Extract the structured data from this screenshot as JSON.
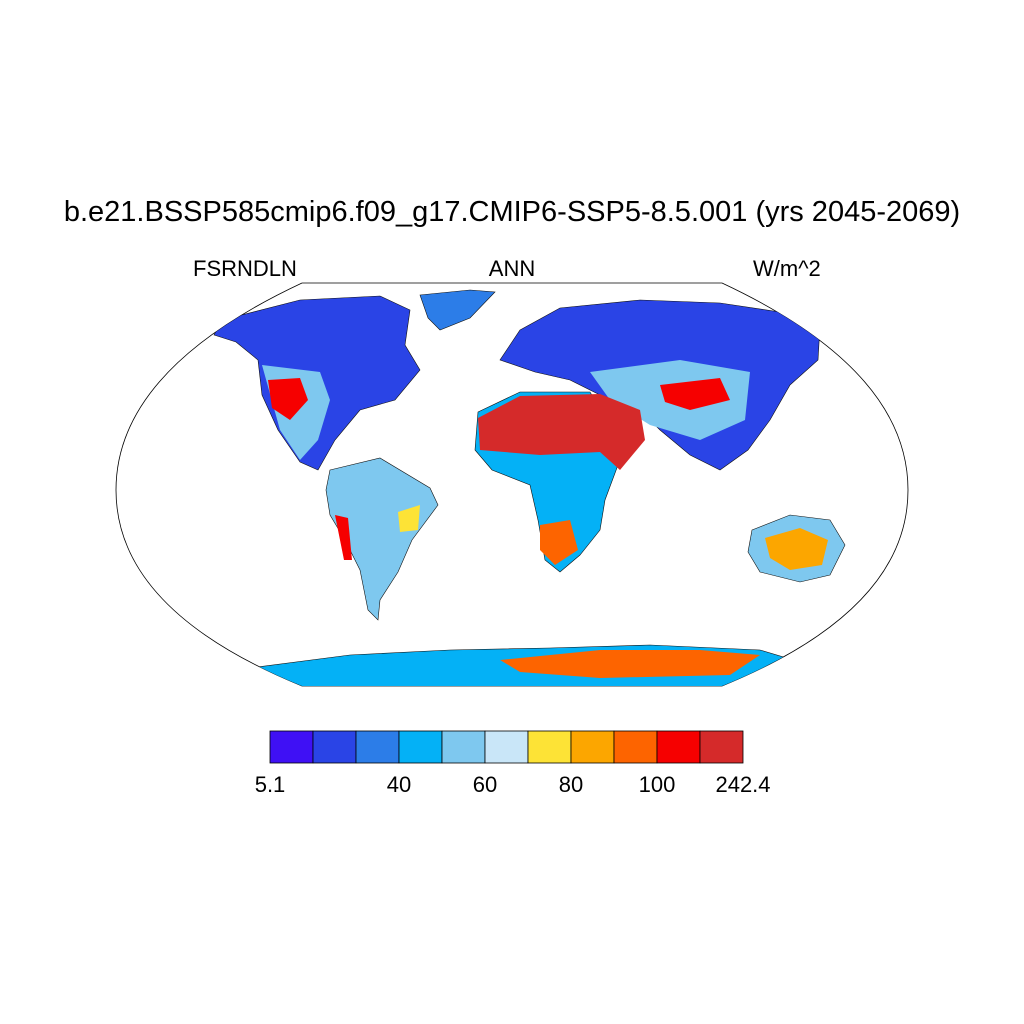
{
  "title": "b.e21.BSSP585cmip6.f09_g17.CMIP6-SSP5-8.5.001 (yrs 2045-2069)",
  "subtitle": {
    "left": "FSRNDLN",
    "center": "ANN",
    "right": "W/m^2"
  },
  "colorbar": {
    "colors": [
      "#3f10f5",
      "#2a44e6",
      "#2c7de8",
      "#04b1f6",
      "#7ec8ef",
      "#c9e6f8",
      "#fde336",
      "#fca600",
      "#fd6400",
      "#f60000",
      "#d52a2a"
    ],
    "labels": [
      "5.1",
      "40",
      "60",
      "80",
      "100",
      "242.4"
    ],
    "label_positions": [
      0,
      3,
      5,
      7,
      9,
      11
    ]
  },
  "regions": [
    {
      "name": "north-america-land",
      "color": "#2a44e6"
    },
    {
      "name": "sahara-arabia",
      "color": "#d52a2a"
    },
    {
      "name": "australia-interior",
      "color": "#fca600"
    },
    {
      "name": "antarctica-plateau",
      "color": "#fd6400"
    }
  ]
}
